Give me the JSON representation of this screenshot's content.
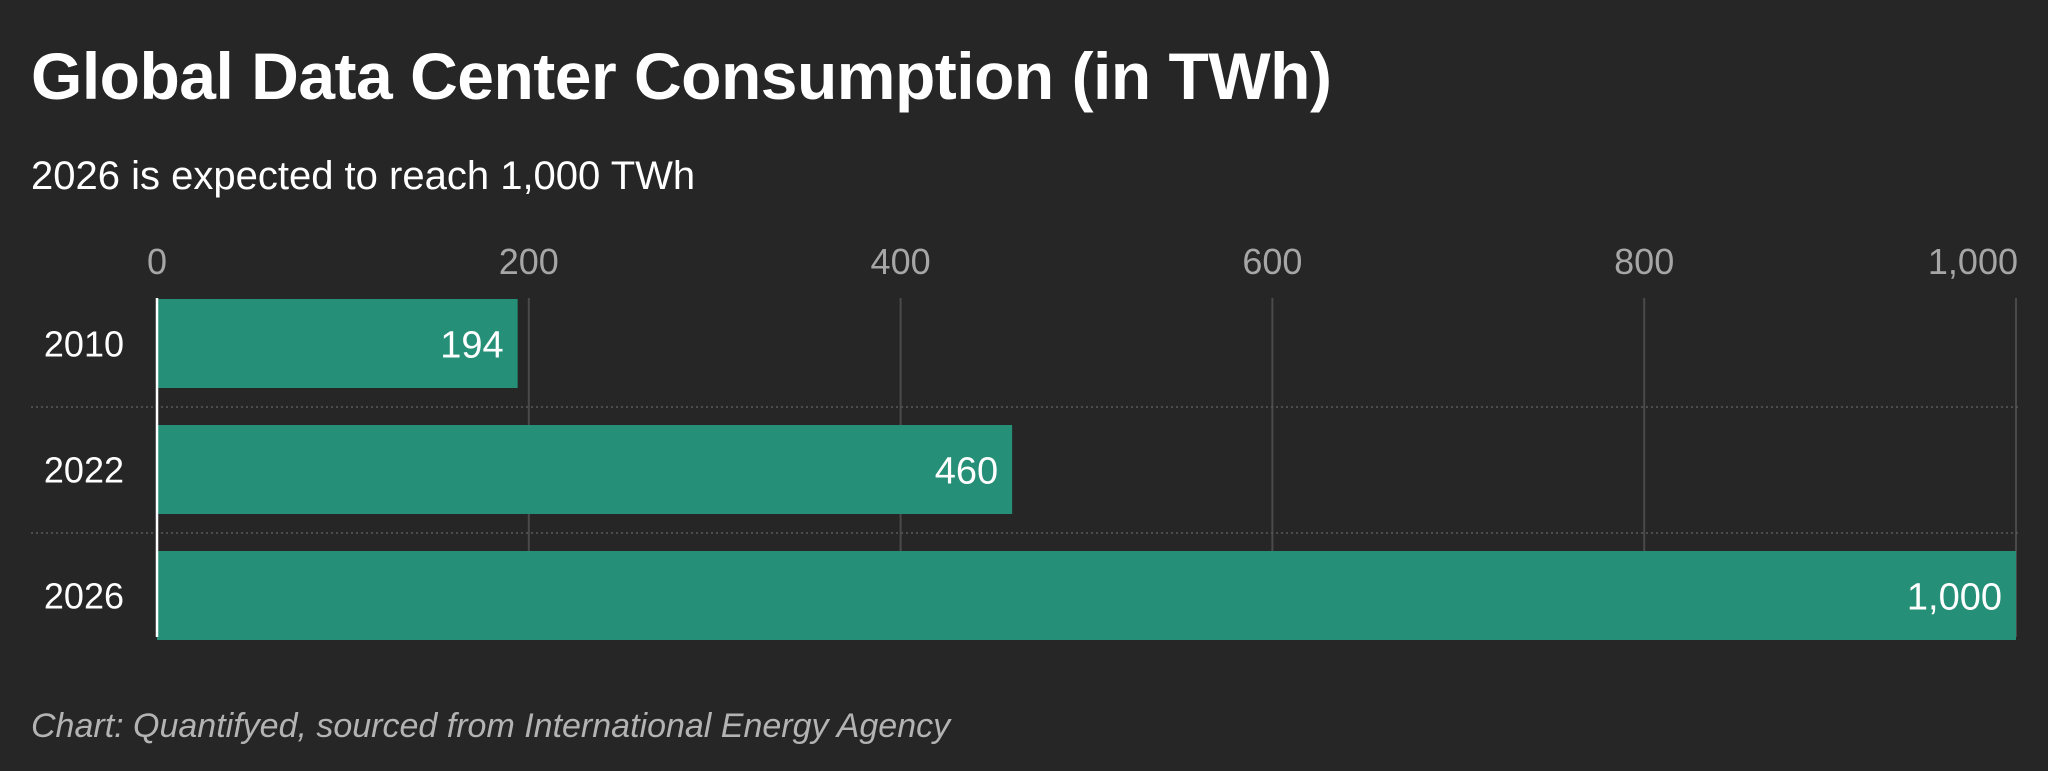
{
  "title": "Global Data Center Consumption (in TWh)",
  "subtitle": "2026 is expected to reach 1,000 TWh",
  "footer": "Chart: Quantifyed, sourced from International Energy Agency",
  "colors": {
    "background": "#262626",
    "bar": "#258f77",
    "gridline": "#4a4a4a",
    "axis_text": "#a6a6a6",
    "label_text": "#ffffff"
  },
  "chart_data": {
    "type": "bar",
    "orientation": "horizontal",
    "categories": [
      "2010",
      "2022",
      "2026"
    ],
    "values": [
      194,
      460,
      1000
    ],
    "value_labels": [
      "194",
      "460",
      "1,000"
    ],
    "xlim": [
      0,
      1000
    ],
    "x_ticks": [
      0,
      200,
      400,
      600,
      800,
      1000
    ],
    "x_tick_labels": [
      "0",
      "200",
      "400",
      "600",
      "800",
      "1,000"
    ],
    "x_axis_position": "top",
    "grid": true,
    "title": "Global Data Center Consumption (in TWh)",
    "subtitle": "2026 is expected to reach 1,000 TWh",
    "xlabel": "",
    "ylabel": ""
  }
}
